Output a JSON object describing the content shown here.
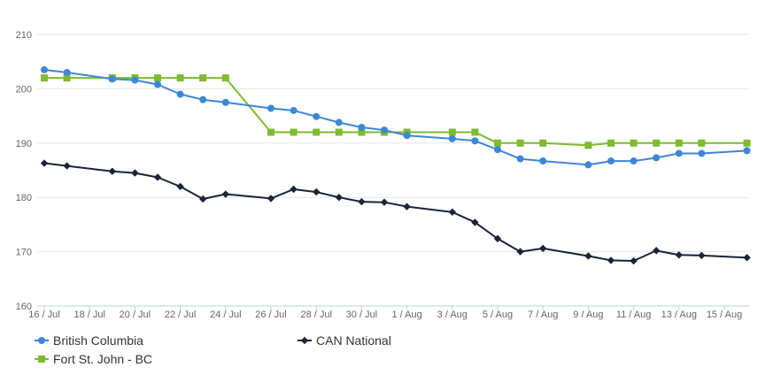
{
  "chart_data": {
    "type": "line",
    "title": "",
    "xlabel": "",
    "ylabel": "",
    "ylim": [
      160,
      210
    ],
    "yticks": [
      160,
      170,
      180,
      190,
      200,
      210
    ],
    "grid": "horizontal",
    "legend_position": "bottom-left",
    "x_tick_labels": [
      "16 / Jul",
      "18 / Jul",
      "20 / Jul",
      "22 / Jul",
      "24 / Jul",
      "26 / Jul",
      "28 / Jul",
      "30 / Jul",
      "1 / Aug",
      "3 / Aug",
      "5 / Aug",
      "7 / Aug",
      "9 / Aug",
      "11 / Aug",
      "13 / Aug",
      "15 / Aug"
    ],
    "x_dates": [
      "2023-07-16",
      "2023-08-16"
    ],
    "series": [
      {
        "name": "British Columbia",
        "color": "#3d87d6",
        "marker": "circle",
        "points": [
          [
            "2023-07-16",
            203.5
          ],
          [
            "2023-07-17",
            203.0
          ],
          [
            "2023-07-19",
            201.8
          ],
          [
            "2023-07-20",
            201.6
          ],
          [
            "2023-07-21",
            200.8
          ],
          [
            "2023-07-22",
            199.0
          ],
          [
            "2023-07-23",
            198.0
          ],
          [
            "2023-07-24",
            197.5
          ],
          [
            "2023-07-26",
            196.4
          ],
          [
            "2023-07-27",
            196.0
          ],
          [
            "2023-07-28",
            194.9
          ],
          [
            "2023-07-29",
            193.8
          ],
          [
            "2023-07-30",
            192.9
          ],
          [
            "2023-07-31",
            192.4
          ],
          [
            "2023-08-01",
            191.4
          ],
          [
            "2023-08-03",
            190.8
          ],
          [
            "2023-08-04",
            190.4
          ],
          [
            "2023-08-05",
            188.8
          ],
          [
            "2023-08-06",
            187.1
          ],
          [
            "2023-08-07",
            186.7
          ],
          [
            "2023-08-09",
            186.0
          ],
          [
            "2023-08-10",
            186.7
          ],
          [
            "2023-08-11",
            186.7
          ],
          [
            "2023-08-12",
            187.3
          ],
          [
            "2023-08-13",
            188.1
          ],
          [
            "2023-08-14",
            188.1
          ],
          [
            "2023-08-16",
            188.6
          ]
        ]
      },
      {
        "name": "CAN National",
        "color": "#1a2438",
        "marker": "diamond",
        "points": [
          [
            "2023-07-16",
            186.3
          ],
          [
            "2023-07-17",
            185.8
          ],
          [
            "2023-07-19",
            184.8
          ],
          [
            "2023-07-20",
            184.5
          ],
          [
            "2023-07-21",
            183.7
          ],
          [
            "2023-07-22",
            182.0
          ],
          [
            "2023-07-23",
            179.7
          ],
          [
            "2023-07-24",
            180.6
          ],
          [
            "2023-07-26",
            179.8
          ],
          [
            "2023-07-27",
            181.5
          ],
          [
            "2023-07-28",
            181.0
          ],
          [
            "2023-07-29",
            180.0
          ],
          [
            "2023-07-30",
            179.2
          ],
          [
            "2023-07-31",
            179.1
          ],
          [
            "2023-08-01",
            178.3
          ],
          [
            "2023-08-03",
            177.3
          ],
          [
            "2023-08-04",
            175.4
          ],
          [
            "2023-08-05",
            172.4
          ],
          [
            "2023-08-06",
            170.0
          ],
          [
            "2023-08-07",
            170.6
          ],
          [
            "2023-08-09",
            169.2
          ],
          [
            "2023-08-10",
            168.4
          ],
          [
            "2023-08-11",
            168.3
          ],
          [
            "2023-08-12",
            170.2
          ],
          [
            "2023-08-13",
            169.4
          ],
          [
            "2023-08-14",
            169.3
          ],
          [
            "2023-08-16",
            168.9
          ]
        ]
      },
      {
        "name": "Fort St. John - BC",
        "color": "#7dbb2f",
        "marker": "square",
        "points": [
          [
            "2023-07-16",
            202.0
          ],
          [
            "2023-07-17",
            202.0
          ],
          [
            "2023-07-19",
            202.0
          ],
          [
            "2023-07-20",
            202.0
          ],
          [
            "2023-07-21",
            202.0
          ],
          [
            "2023-07-22",
            202.0
          ],
          [
            "2023-07-23",
            202.0
          ],
          [
            "2023-07-24",
            202.0
          ],
          [
            "2023-07-26",
            192.0
          ],
          [
            "2023-07-27",
            192.0
          ],
          [
            "2023-07-28",
            192.0
          ],
          [
            "2023-07-29",
            192.0
          ],
          [
            "2023-07-30",
            192.0
          ],
          [
            "2023-07-31",
            192.0
          ],
          [
            "2023-08-01",
            192.0
          ],
          [
            "2023-08-03",
            192.0
          ],
          [
            "2023-08-04",
            192.0
          ],
          [
            "2023-08-05",
            190.0
          ],
          [
            "2023-08-06",
            190.0
          ],
          [
            "2023-08-07",
            190.0
          ],
          [
            "2023-08-09",
            189.6
          ],
          [
            "2023-08-10",
            190.0
          ],
          [
            "2023-08-11",
            190.0
          ],
          [
            "2023-08-12",
            190.0
          ],
          [
            "2023-08-13",
            190.0
          ],
          [
            "2023-08-14",
            190.0
          ],
          [
            "2023-08-16",
            190.0
          ]
        ]
      }
    ]
  }
}
